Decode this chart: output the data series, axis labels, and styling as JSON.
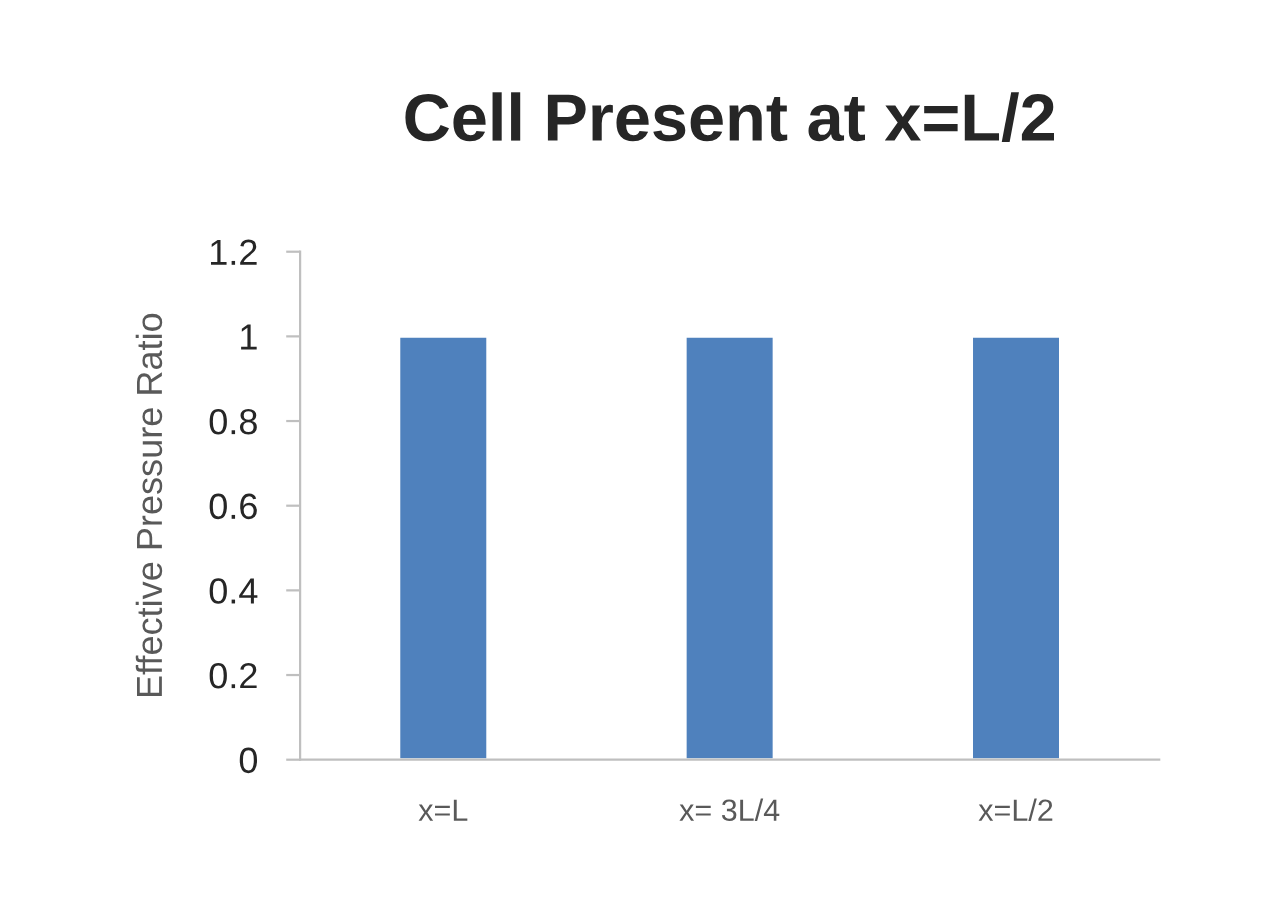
{
  "chart_data": {
    "type": "bar",
    "title": "Cell Present at x=L/2",
    "ylabel": "Effective Pressure Ratio",
    "categories": [
      "x=L",
      "x= 3L/4",
      "x=L/2"
    ],
    "values": [
      1,
      1,
      1
    ],
    "color": "#4f81bd",
    "ylim": [
      0,
      1.2
    ],
    "yticks": [
      0,
      0.2,
      0.4,
      0.6,
      0.8,
      1,
      1.2
    ],
    "grid": false,
    "legend": false
  }
}
